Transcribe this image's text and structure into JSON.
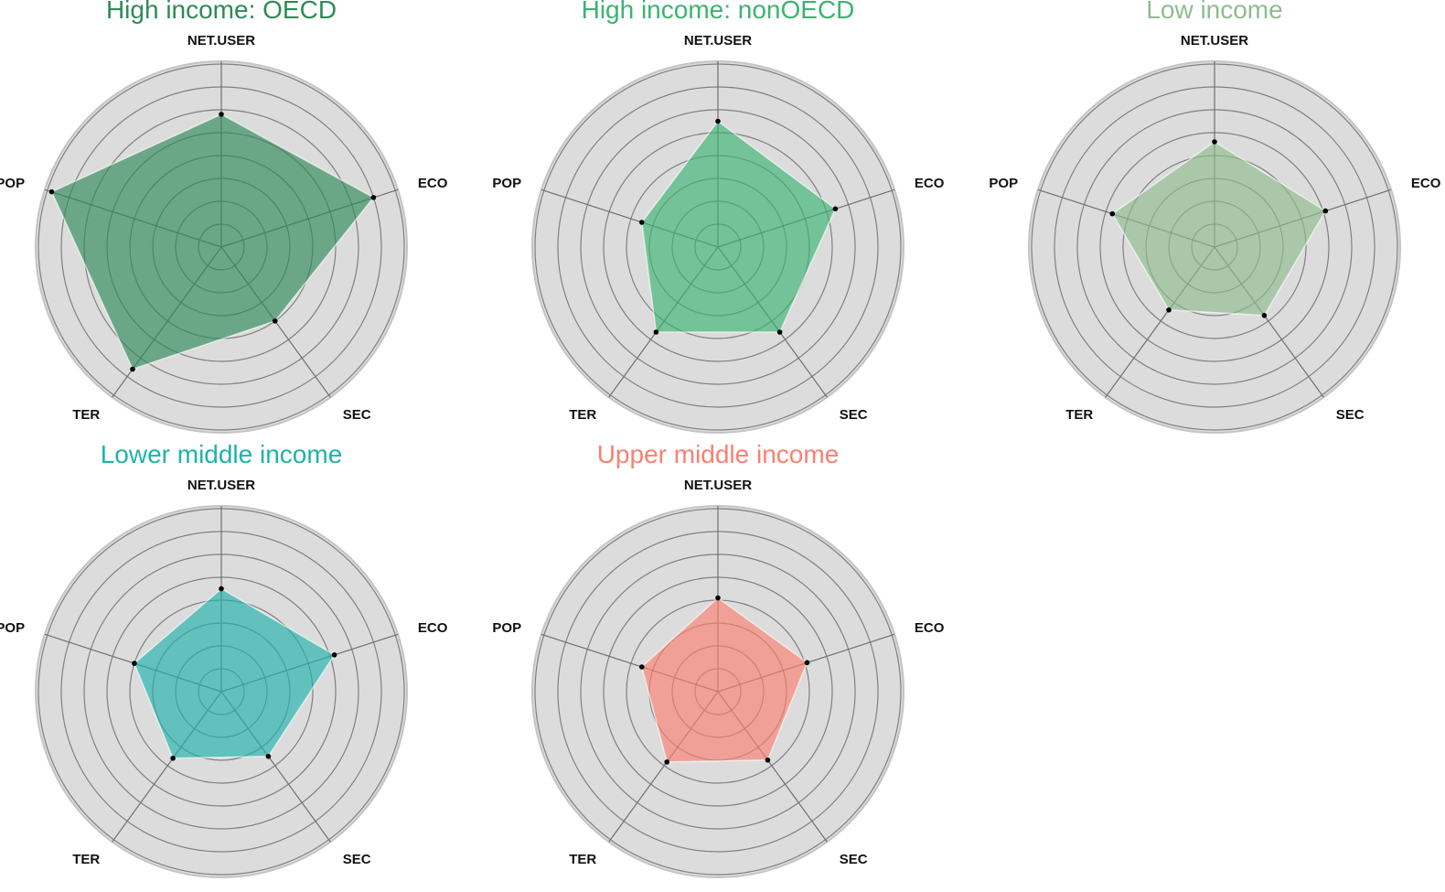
{
  "chart_data": [
    {
      "type": "radar",
      "title": "High income: OECD",
      "color": "#2e8b57",
      "axes": [
        "NET.USER",
        "ECO",
        "SEC",
        "TER",
        "POP"
      ],
      "rlim": [
        0,
        8
      ],
      "rings": 8,
      "values": [
        5.8,
        7.0,
        4.0,
        6.6,
        7.8
      ]
    },
    {
      "type": "radar",
      "title": "High income: nonOECD",
      "color": "#3cb371",
      "axes": [
        "NET.USER",
        "ECO",
        "SEC",
        "TER",
        "POP"
      ],
      "rlim": [
        0,
        8
      ],
      "rings": 8,
      "values": [
        5.5,
        5.4,
        4.6,
        4.6,
        3.5
      ]
    },
    {
      "type": "radar",
      "title": "Low income",
      "color": "#8fbc8f",
      "axes": [
        "NET.USER",
        "ECO",
        "SEC",
        "TER",
        "POP"
      ],
      "rlim": [
        0,
        8
      ],
      "rings": 8,
      "values": [
        4.6,
        5.1,
        3.7,
        3.4,
        4.7
      ]
    },
    {
      "type": "radar",
      "title": "Lower middle income",
      "color": "#20b2aa",
      "axes": [
        "NET.USER",
        "ECO",
        "SEC",
        "TER",
        "POP"
      ],
      "rlim": [
        0,
        8
      ],
      "rings": 8,
      "values": [
        4.5,
        5.2,
        3.5,
        3.6,
        4.0
      ]
    },
    {
      "type": "radar",
      "title": "Upper middle income",
      "color": "#fa8072",
      "axes": [
        "NET.USER",
        "ECO",
        "SEC",
        "TER",
        "POP"
      ],
      "rlim": [
        0,
        8
      ],
      "rings": 8,
      "values": [
        4.1,
        4.1,
        3.7,
        3.8,
        3.5
      ]
    }
  ]
}
